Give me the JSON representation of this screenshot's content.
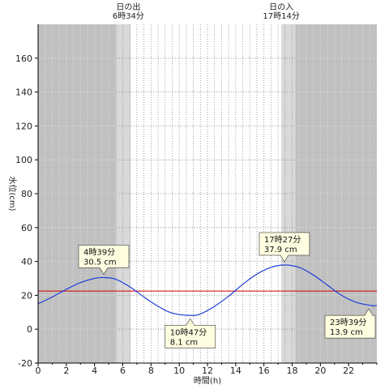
{
  "chart_data": {
    "type": "line",
    "title": "",
    "xlabel": "時間(h)",
    "ylabel": "水位(cm)",
    "xlim": [
      0,
      24
    ],
    "ylim": [
      -20,
      180
    ],
    "xticks": [
      0,
      2,
      4,
      6,
      8,
      10,
      12,
      14,
      16,
      18,
      20,
      22
    ],
    "yticks": [
      -20,
      0,
      20,
      40,
      60,
      80,
      100,
      120,
      140,
      160
    ],
    "grid": true,
    "reference_line": {
      "y": 22.5,
      "color": "#d00000"
    },
    "sun": {
      "sunrise": {
        "label": "日の出",
        "time": "6時34分",
        "hour": 6.567
      },
      "sunset": {
        "label": "日の入",
        "time": "17時14分",
        "hour": 17.233
      }
    },
    "series": [
      {
        "color": "#1f3fd8",
        "x": [
          0,
          1,
          2,
          3,
          4,
          4.65,
          5.5,
          6.5,
          7.5,
          8.5,
          9.5,
          10.78,
          11.5,
          12.5,
          13.5,
          14.5,
          15.5,
          16.5,
          17.45,
          18.5,
          19.5,
          20.5,
          21.5,
          22.5,
          23.65,
          24
        ],
        "y": [
          15,
          19,
          23.5,
          27.5,
          30,
          30.5,
          29.5,
          25,
          19,
          13.5,
          9.5,
          8.1,
          9,
          13.5,
          19.5,
          26.5,
          32.5,
          36.5,
          37.9,
          36.5,
          32,
          26,
          20,
          16,
          13.9,
          14
        ]
      }
    ],
    "annotations": [
      {
        "time": "4時39分",
        "value": "30.5 cm",
        "x": 4.65,
        "y": 30.5,
        "placement": "above"
      },
      {
        "time": "10時47分",
        "value": "8.1 cm",
        "x": 10.78,
        "y": 8.1,
        "placement": "below"
      },
      {
        "time": "17時27分",
        "value": "37.9 cm",
        "x": 17.45,
        "y": 37.9,
        "placement": "above"
      },
      {
        "time": "23時39分",
        "value": "13.9 cm",
        "x": 23.65,
        "y": 13.9,
        "placement": "below"
      }
    ],
    "colors": {
      "night": "#c0c0c0",
      "twilight": "#d9d9d9",
      "day": "#ffffff",
      "grid_day": "#888888",
      "grid_night": "#e8e8e8",
      "callout_fill": "#fffde0"
    }
  }
}
